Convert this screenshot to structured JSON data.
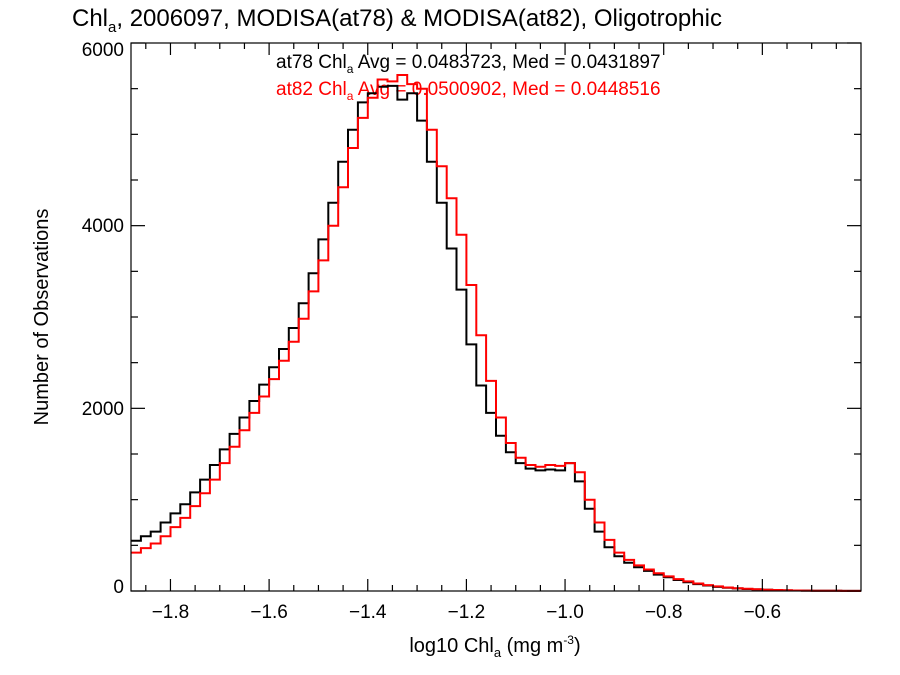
{
  "chart_data": {
    "type": "line",
    "step": true,
    "title_parts": [
      "Chl",
      "a",
      ", 2006097, MODISA(at78) & MODISA(at82), Oligotrophic"
    ],
    "xlabel_parts": [
      "log10 Chl",
      "a",
      " (mg m",
      "-3",
      ")"
    ],
    "ylabel": "Number of Observations",
    "xlim": [
      -1.88,
      -0.4
    ],
    "ylim": [
      0,
      6000
    ],
    "xticks": [
      -1.8,
      -1.6,
      -1.4,
      -1.2,
      -1.0,
      -0.8,
      -0.6
    ],
    "xtick_labels": [
      "−1.8",
      "−1.6",
      "−1.4",
      "−1.2",
      "−1.0",
      "−0.8",
      "−0.6"
    ],
    "yticks": [
      0,
      2000,
      4000,
      6000
    ],
    "ytick_labels": [
      "0",
      "2000",
      "4000",
      "6000"
    ],
    "grid": false,
    "annotations": [
      {
        "parts": [
          "at78 Chl",
          "a",
          " Avg = 0.0483723, Med = 0.0431897"
        ],
        "color": "#000000"
      },
      {
        "parts": [
          "at82 Chl",
          "a",
          " Avg = 0.0500902, Med = 0.0448516"
        ],
        "color": "#ff0000"
      }
    ],
    "series": [
      {
        "color": "#000000",
        "x": [
          -1.88,
          -1.86,
          -1.84,
          -1.82,
          -1.8,
          -1.78,
          -1.76,
          -1.74,
          -1.72,
          -1.7,
          -1.68,
          -1.66,
          -1.64,
          -1.62,
          -1.6,
          -1.58,
          -1.56,
          -1.54,
          -1.52,
          -1.5,
          -1.48,
          -1.46,
          -1.44,
          -1.42,
          -1.4,
          -1.38,
          -1.36,
          -1.34,
          -1.32,
          -1.3,
          -1.28,
          -1.26,
          -1.24,
          -1.22,
          -1.2,
          -1.18,
          -1.16,
          -1.14,
          -1.12,
          -1.1,
          -1.08,
          -1.06,
          -1.04,
          -1.02,
          -1.0,
          -0.98,
          -0.96,
          -0.94,
          -0.92,
          -0.9,
          -0.88,
          -0.86,
          -0.84,
          -0.82,
          -0.8,
          -0.78,
          -0.76,
          -0.74,
          -0.72,
          -0.7,
          -0.68,
          -0.66,
          -0.64,
          -0.62,
          -0.6,
          -0.58,
          -0.56,
          -0.54,
          -0.52,
          -0.5,
          -0.48,
          -0.46,
          -0.44,
          -0.42,
          -0.4
        ],
        "y": [
          550,
          600,
          650,
          750,
          850,
          950,
          1080,
          1220,
          1380,
          1550,
          1720,
          1900,
          2080,
          2260,
          2450,
          2650,
          2880,
          3150,
          3480,
          3850,
          4250,
          4700,
          5050,
          5350,
          5450,
          5520,
          5530,
          5380,
          5450,
          5150,
          4700,
          4250,
          3750,
          3300,
          2700,
          2250,
          1950,
          1700,
          1520,
          1400,
          1340,
          1320,
          1330,
          1320,
          1400,
          1200,
          900,
          650,
          480,
          380,
          310,
          260,
          220,
          180,
          150,
          120,
          95,
          75,
          60,
          45,
          35,
          28,
          22,
          17,
          13,
          10,
          7,
          5,
          4,
          3,
          2,
          2,
          1,
          1,
          1
        ]
      },
      {
        "color": "#ff0000",
        "x": [
          -1.88,
          -1.86,
          -1.84,
          -1.82,
          -1.8,
          -1.78,
          -1.76,
          -1.74,
          -1.72,
          -1.7,
          -1.68,
          -1.66,
          -1.64,
          -1.62,
          -1.6,
          -1.58,
          -1.56,
          -1.54,
          -1.52,
          -1.5,
          -1.48,
          -1.46,
          -1.44,
          -1.42,
          -1.4,
          -1.38,
          -1.36,
          -1.34,
          -1.32,
          -1.3,
          -1.28,
          -1.26,
          -1.24,
          -1.22,
          -1.2,
          -1.18,
          -1.16,
          -1.14,
          -1.12,
          -1.1,
          -1.08,
          -1.06,
          -1.04,
          -1.02,
          -1.0,
          -0.98,
          -0.96,
          -0.94,
          -0.92,
          -0.9,
          -0.88,
          -0.86,
          -0.84,
          -0.82,
          -0.8,
          -0.78,
          -0.76,
          -0.74,
          -0.72,
          -0.7,
          -0.68,
          -0.66,
          -0.64,
          -0.62,
          -0.6,
          -0.58,
          -0.56,
          -0.54,
          -0.52,
          -0.5,
          -0.48,
          -0.46,
          -0.44,
          -0.42,
          -0.4
        ],
        "y": [
          420,
          470,
          520,
          600,
          700,
          800,
          930,
          1070,
          1220,
          1400,
          1580,
          1760,
          1950,
          2130,
          2320,
          2520,
          2730,
          2980,
          3280,
          3620,
          4000,
          4420,
          4850,
          5180,
          5400,
          5600,
          5580,
          5650,
          5550,
          5500,
          5050,
          4650,
          4300,
          3900,
          3350,
          2800,
          2300,
          1900,
          1620,
          1460,
          1380,
          1360,
          1380,
          1370,
          1400,
          1300,
          1000,
          750,
          560,
          420,
          340,
          280,
          235,
          195,
          160,
          130,
          105,
          82,
          65,
          50,
          38,
          30,
          24,
          19,
          14,
          11,
          8,
          6,
          4,
          3,
          2,
          2,
          1,
          1,
          1
        ]
      }
    ]
  }
}
